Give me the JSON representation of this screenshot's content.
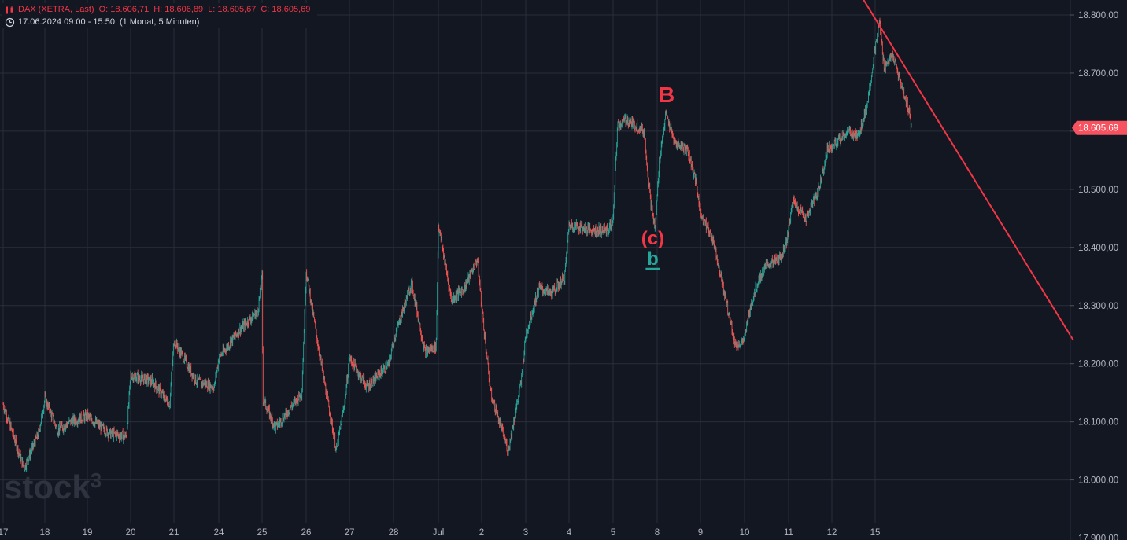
{
  "legend": {
    "symbol": "DAX (XETRA, Last)",
    "open": "O: 18.606,71",
    "high": "H: 18.606,89",
    "low": "L: 18.605,67",
    "close": "C: 18.605,69",
    "range": "17.06.2024 09:00 - 15:50",
    "interval": "(1 Monat, 5 Minuten)"
  },
  "watermark": "stock",
  "watermark_sup": "3",
  "colors": {
    "background": "#131722",
    "grid": "#2a2e39",
    "up": "#26a69a",
    "down": "#ef5350",
    "trendline": "#f23645",
    "label_red": "#f23645",
    "label_green": "#26a69a",
    "axis_text": "#b2b5be",
    "badge": "#f7525f"
  },
  "chart_data": {
    "type": "candlestick",
    "symbol": "DAX (XETRA, Last)",
    "ylim": [
      17900,
      18830
    ],
    "y_ticks": [
      "18.800,00",
      "18.700,00",
      "18.600,00",
      "18.500,00",
      "18.400,00",
      "18.300,00",
      "18.200,00",
      "18.100,00",
      "18.000,00",
      "17.900,00"
    ],
    "y_tick_values": [
      18800,
      18700,
      18600,
      18500,
      18400,
      18300,
      18200,
      18100,
      18000,
      17900
    ],
    "x_ticks": [
      "17",
      "18",
      "19",
      "20",
      "21",
      "24",
      "25",
      "26",
      "27",
      "28",
      "Jul",
      "2",
      "3",
      "4",
      "5",
      "8",
      "9",
      "10",
      "11",
      "12",
      "15"
    ],
    "last_price": 18605.69,
    "last_price_label": "18.605,69",
    "price_path": [
      [
        0,
        18130
      ],
      [
        0.5,
        18020
      ],
      [
        0.85,
        18080
      ],
      [
        1,
        18140
      ],
      [
        1.3,
        18085
      ],
      [
        1.6,
        18100
      ],
      [
        2,
        18110
      ],
      [
        2.5,
        18080
      ],
      [
        2.9,
        18075
      ],
      [
        3,
        18180
      ],
      [
        3.5,
        18170
      ],
      [
        3.9,
        18130
      ],
      [
        4,
        18240
      ],
      [
        4.5,
        18170
      ],
      [
        4.9,
        18160
      ],
      [
        5,
        18210
      ],
      [
        5.5,
        18260
      ],
      [
        5.9,
        18290
      ],
      [
        6,
        18350
      ],
      [
        6.02,
        18140
      ],
      [
        6.3,
        18090
      ],
      [
        6.9,
        18150
      ],
      [
        7,
        18360
      ],
      [
        7.3,
        18220
      ],
      [
        7.7,
        18050
      ],
      [
        7.9,
        18140
      ],
      [
        8,
        18210
      ],
      [
        8.4,
        18160
      ],
      [
        8.9,
        18200
      ],
      [
        9,
        18240
      ],
      [
        9.4,
        18340
      ],
      [
        9.7,
        18220
      ],
      [
        9.95,
        18230
      ],
      [
        10,
        18440
      ],
      [
        10.3,
        18310
      ],
      [
        10.6,
        18330
      ],
      [
        10.9,
        18380
      ],
      [
        11,
        18300
      ],
      [
        11.2,
        18150
      ],
      [
        11.6,
        18050
      ],
      [
        11.9,
        18170
      ],
      [
        12,
        18250
      ],
      [
        12.3,
        18330
      ],
      [
        12.6,
        18320
      ],
      [
        12.9,
        18350
      ],
      [
        13,
        18440
      ],
      [
        13.5,
        18430
      ],
      [
        13.9,
        18430
      ],
      [
        14,
        18450
      ],
      [
        14.1,
        18610
      ],
      [
        14.3,
        18620
      ],
      [
        14.7,
        18600
      ],
      [
        14.85,
        18480
      ],
      [
        14.95,
        18430
      ],
      [
        15.05,
        18550
      ],
      [
        15.2,
        18630
      ],
      [
        15.4,
        18580
      ],
      [
        15.7,
        18570
      ],
      [
        15.9,
        18510
      ],
      [
        16,
        18460
      ],
      [
        16.3,
        18410
      ],
      [
        16.6,
        18300
      ],
      [
        16.8,
        18230
      ],
      [
        17.0,
        18240
      ],
      [
        17.1,
        18290
      ],
      [
        17.3,
        18340
      ],
      [
        17.5,
        18370
      ],
      [
        17.8,
        18380
      ],
      [
        17.95,
        18410
      ],
      [
        18.1,
        18480
      ],
      [
        18.4,
        18450
      ],
      [
        18.7,
        18500
      ],
      [
        18.9,
        18570
      ],
      [
        19.1,
        18580
      ],
      [
        19.4,
        18600
      ],
      [
        19.6,
        18590
      ],
      [
        19.8,
        18640
      ],
      [
        20.0,
        18740
      ],
      [
        20.1,
        18790
      ],
      [
        20.2,
        18710
      ],
      [
        20.4,
        18730
      ],
      [
        20.55,
        18690
      ],
      [
        20.75,
        18640
      ],
      [
        20.83,
        18605.69
      ]
    ],
    "trendline": {
      "from": [
        19.7,
        18830
      ],
      "to": [
        24.5,
        18240
      ]
    },
    "annotations": [
      {
        "text": "B",
        "x": 15.22,
        "y": 18650,
        "color": "red"
      },
      {
        "text": "(c)",
        "x": 14.9,
        "y": 18405,
        "color": "red"
      },
      {
        "text": "b",
        "x": 14.9,
        "y": 18370,
        "color": "green"
      }
    ]
  }
}
